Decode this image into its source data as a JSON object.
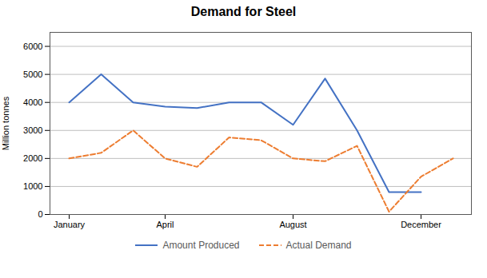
{
  "chart_data": {
    "type": "line",
    "title": "Demand for Steel",
    "ylabel": "Million tonnes",
    "categories": [
      "January",
      null,
      null,
      "April",
      null,
      null,
      null,
      "August",
      null,
      null,
      null,
      "December",
      null
    ],
    "series": [
      {
        "name": "Amount Produced",
        "color": "#4472C4",
        "line_style": "solid",
        "values": [
          4000,
          5000,
          4000,
          3850,
          3800,
          4000,
          4000,
          3200,
          4850,
          3000,
          800,
          800,
          null
        ]
      },
      {
        "name": "Actual Demand",
        "color": "#ED7D31",
        "line_style": "dashed",
        "values": [
          2000,
          2200,
          3000,
          2000,
          1700,
          2750,
          2650,
          2000,
          1900,
          2450,
          100,
          1350,
          2000
        ]
      }
    ],
    "ylim": [
      0,
      6500
    ],
    "yticks": [
      0,
      1000,
      2000,
      3000,
      4000,
      5000,
      6000
    ],
    "grid": true,
    "legend": "bottom"
  }
}
